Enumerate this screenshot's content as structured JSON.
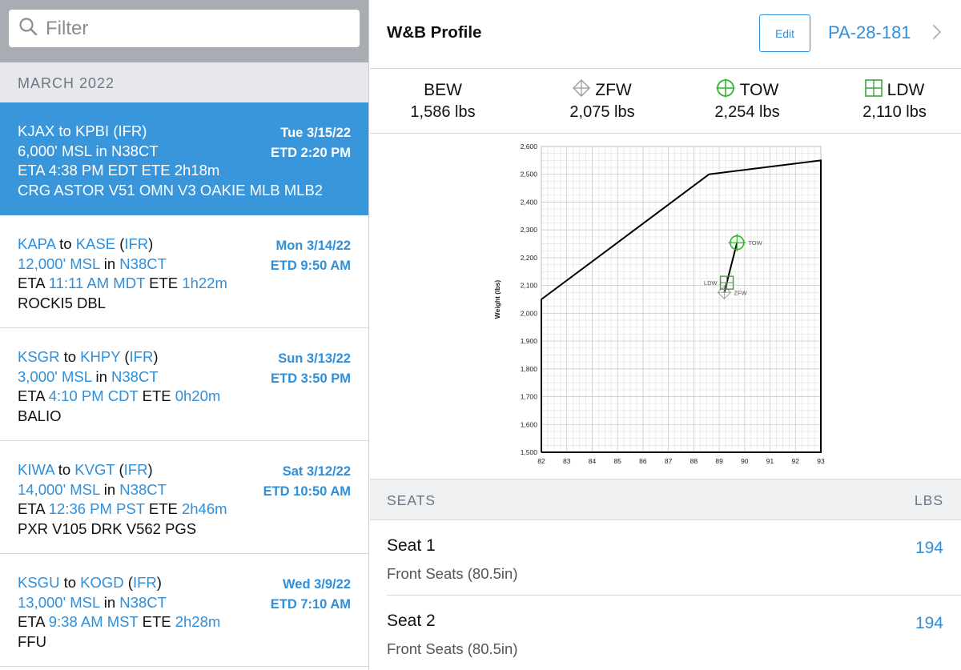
{
  "filter": {
    "placeholder": "Filter"
  },
  "month_header": "MARCH 2022",
  "trips": [
    {
      "from": "KJAX",
      "to": "KPBI",
      "rule": "IFR",
      "date": "Tue 3/15/22",
      "altitude": "6,000' MSL",
      "aircraft": "N38CT",
      "etd": "ETD 2:20 PM",
      "eta": "4:38 PM EDT",
      "ete": "2h18m",
      "route": "CRG ASTOR V51 OMN V3 OAKIE MLB MLB2"
    },
    {
      "from": "KAPA",
      "to": "KASE",
      "rule": "IFR",
      "date": "Mon 3/14/22",
      "altitude": "12,000' MSL",
      "aircraft": "N38CT",
      "etd": "ETD 9:50 AM",
      "eta": "11:11 AM MDT",
      "ete": "1h22m",
      "route": "ROCKI5 DBL"
    },
    {
      "from": "KSGR",
      "to": "KHPY",
      "rule": "IFR",
      "date": "Sun 3/13/22",
      "altitude": "3,000' MSL",
      "aircraft": "N38CT",
      "etd": "ETD 3:50 PM",
      "eta": "4:10 PM CDT",
      "ete": "0h20m",
      "route": "BALIO"
    },
    {
      "from": "KIWA",
      "to": "KVGT",
      "rule": "IFR",
      "date": "Sat 3/12/22",
      "altitude": "14,000' MSL",
      "aircraft": "N38CT",
      "etd": "ETD 10:50 AM",
      "eta": "12:36 PM PST",
      "ete": "2h46m",
      "route": "PXR V105 DRK V562 PGS"
    },
    {
      "from": "KSGU",
      "to": "KOGD",
      "rule": "IFR",
      "date": "Wed 3/9/22",
      "altitude": "13,000' MSL",
      "aircraft": "N38CT",
      "etd": "ETD 7:10 AM",
      "eta": "9:38 AM MST",
      "ete": "2h28m",
      "route": "FFU"
    }
  ],
  "words": {
    "to": "to",
    "in": "in",
    "eta": "ETA",
    "ete": "ETE"
  },
  "header": {
    "title": "W&B Profile",
    "edit_label": "Edit",
    "aircraft_type": "PA-28-181"
  },
  "weights": [
    {
      "label": "BEW",
      "value": "1,586 lbs",
      "icon": ""
    },
    {
      "label": "ZFW",
      "value": "2,075 lbs",
      "icon": "zfw-diamond-icon"
    },
    {
      "label": "TOW",
      "value": "2,254 lbs",
      "icon": "tow-crosshair-icon"
    },
    {
      "label": "LDW",
      "value": "2,110 lbs",
      "icon": "ldw-square-icon"
    }
  ],
  "colors": {
    "accent": "#2f8fd8",
    "selected_row": "#3a96da",
    "tow_green": "#2fb52f",
    "ldw_green": "#3aa63a",
    "zfw_gray": "#9a9a9a"
  },
  "chart_data": {
    "type": "scatter",
    "title": "",
    "xlabel": "",
    "ylabel": "Weight (lbs)",
    "xlim": [
      82,
      93
    ],
    "ylim": [
      1500,
      2600
    ],
    "x_ticks": [
      82,
      83,
      84,
      85,
      86,
      87,
      88,
      89,
      90,
      91,
      92,
      93
    ],
    "y_ticks": [
      1500,
      1600,
      1700,
      1800,
      1900,
      2000,
      2100,
      2200,
      2300,
      2400,
      2500,
      2600
    ],
    "y_tick_labels": [
      "1,500",
      "1,600",
      "1,700",
      "1,800",
      "1,900",
      "2,000",
      "2,100",
      "2,200",
      "2,300",
      "2,400",
      "2,500",
      "2,600"
    ],
    "grid": true,
    "envelope": [
      [
        82,
        1500
      ],
      [
        82,
        2050
      ],
      [
        88.6,
        2500
      ],
      [
        93,
        2550
      ],
      [
        93,
        1500
      ],
      [
        82,
        1500
      ]
    ],
    "points": [
      {
        "label": "TOW",
        "x": 89.7,
        "y": 2254
      },
      {
        "label": "LDW",
        "x": 89.3,
        "y": 2110
      },
      {
        "label": "ZFW",
        "x": 89.2,
        "y": 2075
      }
    ]
  },
  "seats": {
    "header_left": "SEATS",
    "header_right": "LBS",
    "items": [
      {
        "name": "Seat 1",
        "subtitle": "Front Seats (80.5in)",
        "weight": "194"
      },
      {
        "name": "Seat 2",
        "subtitle": "Front Seats (80.5in)",
        "weight": "194"
      }
    ]
  }
}
